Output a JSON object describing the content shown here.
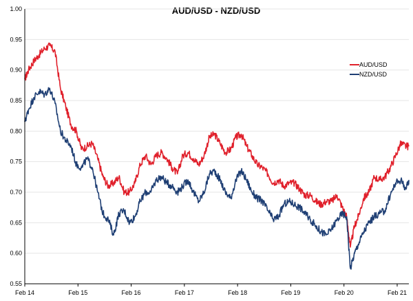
{
  "chart_data": {
    "type": "line",
    "title": "AUD/USD - NZD/USD",
    "xlabel": "",
    "ylabel": "",
    "ylim": [
      0.55,
      1.0
    ],
    "y_ticks": [
      "0.55",
      "0.60",
      "0.65",
      "0.70",
      "0.75",
      "0.80",
      "0.85",
      "0.90",
      "0.95",
      "1.00"
    ],
    "x_ticks": [
      "Feb 14",
      "Feb 15",
      "Feb 16",
      "Feb 17",
      "Feb 18",
      "Feb 19",
      "Feb 20",
      "Feb 21"
    ],
    "xlim": [
      2014.08,
      2021.3
    ],
    "grid": true,
    "legend_position": "right",
    "series": [
      {
        "name": "AUD/USD",
        "color": "#e0202b",
        "x": [
          2014.08,
          2014.15,
          2014.25,
          2014.35,
          2014.45,
          2014.55,
          2014.65,
          2014.75,
          2014.85,
          2014.95,
          2015.05,
          2015.15,
          2015.25,
          2015.35,
          2015.45,
          2015.55,
          2015.65,
          2015.75,
          2015.85,
          2015.95,
          2016.05,
          2016.15,
          2016.25,
          2016.35,
          2016.45,
          2016.55,
          2016.65,
          2016.75,
          2016.85,
          2016.95,
          2017.05,
          2017.15,
          2017.25,
          2017.35,
          2017.45,
          2017.55,
          2017.65,
          2017.75,
          2017.85,
          2017.95,
          2018.05,
          2018.15,
          2018.25,
          2018.35,
          2018.45,
          2018.55,
          2018.65,
          2018.75,
          2018.85,
          2018.95,
          2019.05,
          2019.15,
          2019.25,
          2019.35,
          2019.45,
          2019.55,
          2019.65,
          2019.75,
          2019.85,
          2019.95,
          2020.05,
          2020.13,
          2020.2,
          2020.28,
          2020.35,
          2020.45,
          2020.55,
          2020.65,
          2020.75,
          2020.85,
          2020.95,
          2021.05,
          2021.15,
          2021.25,
          2021.3
        ],
        "values": [
          0.885,
          0.9,
          0.915,
          0.925,
          0.935,
          0.94,
          0.93,
          0.87,
          0.84,
          0.81,
          0.8,
          0.77,
          0.775,
          0.78,
          0.755,
          0.725,
          0.71,
          0.715,
          0.725,
          0.7,
          0.7,
          0.715,
          0.745,
          0.76,
          0.745,
          0.76,
          0.765,
          0.755,
          0.74,
          0.73,
          0.76,
          0.765,
          0.755,
          0.745,
          0.76,
          0.79,
          0.795,
          0.78,
          0.765,
          0.77,
          0.79,
          0.795,
          0.775,
          0.76,
          0.745,
          0.74,
          0.73,
          0.715,
          0.72,
          0.71,
          0.715,
          0.715,
          0.705,
          0.695,
          0.695,
          0.685,
          0.68,
          0.685,
          0.685,
          0.695,
          0.675,
          0.66,
          0.61,
          0.645,
          0.66,
          0.69,
          0.7,
          0.725,
          0.72,
          0.725,
          0.74,
          0.76,
          0.78,
          0.775,
          0.775
        ]
      },
      {
        "name": "NZD/USD",
        "color": "#1f3f74",
        "x": [
          2014.08,
          2014.15,
          2014.25,
          2014.35,
          2014.45,
          2014.55,
          2014.65,
          2014.75,
          2014.85,
          2014.95,
          2015.05,
          2015.15,
          2015.25,
          2015.35,
          2015.45,
          2015.55,
          2015.65,
          2015.75,
          2015.85,
          2015.95,
          2016.05,
          2016.15,
          2016.25,
          2016.35,
          2016.45,
          2016.55,
          2016.65,
          2016.75,
          2016.85,
          2016.95,
          2017.05,
          2017.15,
          2017.25,
          2017.35,
          2017.45,
          2017.55,
          2017.65,
          2017.75,
          2017.85,
          2017.95,
          2018.05,
          2018.15,
          2018.25,
          2018.35,
          2018.45,
          2018.55,
          2018.65,
          2018.75,
          2018.85,
          2018.95,
          2019.05,
          2019.15,
          2019.25,
          2019.35,
          2019.45,
          2019.55,
          2019.65,
          2019.75,
          2019.85,
          2019.95,
          2020.05,
          2020.13,
          2020.2,
          2020.28,
          2020.35,
          2020.45,
          2020.55,
          2020.65,
          2020.75,
          2020.85,
          2020.95,
          2021.05,
          2021.15,
          2021.25,
          2021.3
        ],
        "values": [
          0.815,
          0.835,
          0.855,
          0.865,
          0.86,
          0.87,
          0.845,
          0.8,
          0.785,
          0.775,
          0.745,
          0.74,
          0.755,
          0.74,
          0.7,
          0.665,
          0.655,
          0.63,
          0.665,
          0.67,
          0.65,
          0.66,
          0.685,
          0.7,
          0.7,
          0.72,
          0.725,
          0.715,
          0.71,
          0.7,
          0.71,
          0.72,
          0.7,
          0.685,
          0.7,
          0.73,
          0.735,
          0.72,
          0.7,
          0.69,
          0.72,
          0.735,
          0.72,
          0.7,
          0.69,
          0.685,
          0.67,
          0.655,
          0.66,
          0.68,
          0.685,
          0.68,
          0.675,
          0.665,
          0.655,
          0.645,
          0.635,
          0.63,
          0.64,
          0.655,
          0.665,
          0.66,
          0.575,
          0.6,
          0.615,
          0.635,
          0.65,
          0.66,
          0.665,
          0.67,
          0.695,
          0.715,
          0.72,
          0.705,
          0.72
        ]
      }
    ]
  }
}
